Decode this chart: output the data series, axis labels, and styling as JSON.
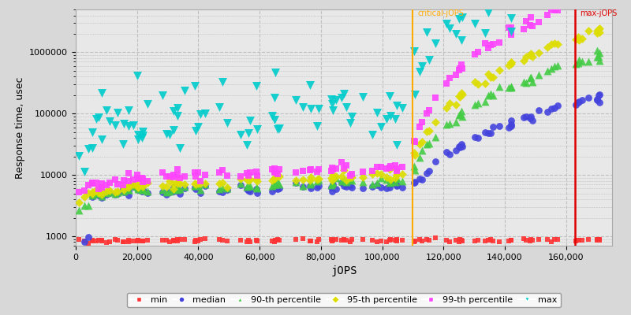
{
  "xlabel": "jOPS",
  "ylabel": "Response time, usec",
  "xlim": [
    0,
    175000
  ],
  "ylim_log": [
    700,
    5000000
  ],
  "critical_jops": 110000,
  "max_jops": 163000,
  "critical_label": "critical-jOPS",
  "max_label": "max-jOPS",
  "bg_color": "#d8d8d8",
  "plot_bg_color": "#e8e8e8",
  "grid_color": "#c0c0c0",
  "series_min": {
    "color": "#ff3333",
    "marker": "s",
    "ms": 2.5,
    "label": "min"
  },
  "series_med": {
    "color": "#4444dd",
    "marker": "o",
    "ms": 4.0,
    "label": "median"
  },
  "series_p90": {
    "color": "#44cc44",
    "marker": "^",
    "ms": 4.5,
    "label": "90-th percentile"
  },
  "series_p95": {
    "color": "#dddd00",
    "marker": "D",
    "ms": 3.5,
    "label": "95-th percentile"
  },
  "series_p99": {
    "color": "#ff44ff",
    "marker": "s",
    "ms": 3.5,
    "label": "99-th percentile"
  },
  "series_max": {
    "color": "#00cccc",
    "marker": "v",
    "ms": 5.0,
    "label": "max"
  },
  "xticks": [
    0,
    20000,
    40000,
    60000,
    80000,
    100000,
    120000,
    140000,
    160000
  ],
  "yticks": [
    1000,
    10000,
    100000,
    1000000
  ],
  "ytick_labels": [
    "1000",
    "10000",
    "100000",
    "1000000"
  ],
  "figsize": [
    8.0,
    4.0
  ],
  "dpi": 100
}
